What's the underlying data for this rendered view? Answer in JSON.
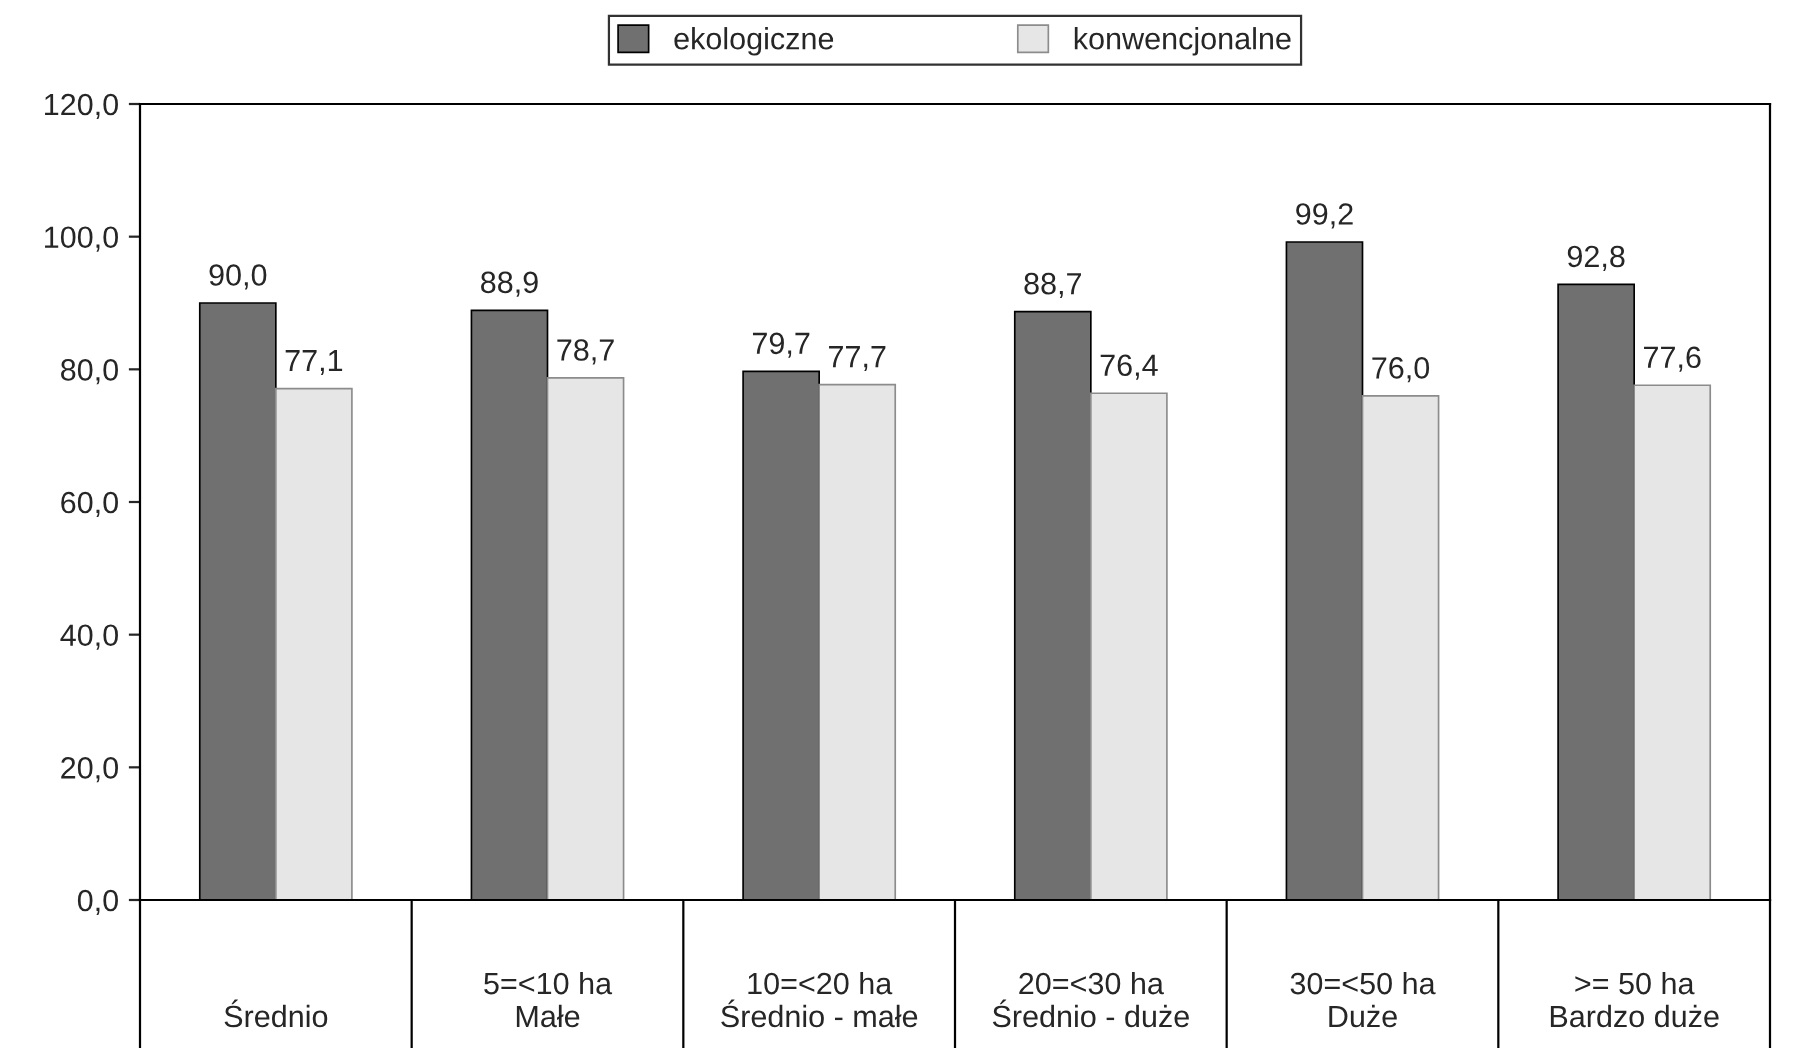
{
  "chart_data": {
    "type": "bar",
    "categories": [
      "Średnio",
      "5=<10 ha\nMałe",
      "10=<20 ha\nŚrednio - małe",
      "20=<30 ha\nŚrednio - duże",
      "30=<50 ha\nDuże",
      ">= 50 ha\nBardzo duże"
    ],
    "series": [
      {
        "name": "ekologiczne",
        "color": "#707070",
        "values": [
          90.0,
          88.9,
          79.7,
          88.7,
          99.2,
          92.8
        ],
        "value_labels": [
          "90,0",
          "88,9",
          "79,7",
          "88,7",
          "99,2",
          "92,8"
        ]
      },
      {
        "name": "konwencjonalne",
        "color": "#e6e6e6",
        "values": [
          77.1,
          78.7,
          77.7,
          76.4,
          76.0,
          77.6
        ],
        "value_labels": [
          "77,1",
          "78,7",
          "77,7",
          "76,4",
          "76,0",
          "77,6"
        ]
      }
    ],
    "ylim": [
      0,
      120
    ],
    "yticks": [
      {
        "value": 0,
        "label": "0,0"
      },
      {
        "value": 20,
        "label": "20,0"
      },
      {
        "value": 40,
        "label": "40,0"
      },
      {
        "value": 60,
        "label": "60,0"
      },
      {
        "value": 80,
        "label": "80,0"
      },
      {
        "value": 100,
        "label": "100,0"
      },
      {
        "value": 120,
        "label": "120,0"
      }
    ],
    "grid": false,
    "legend": "top"
  }
}
